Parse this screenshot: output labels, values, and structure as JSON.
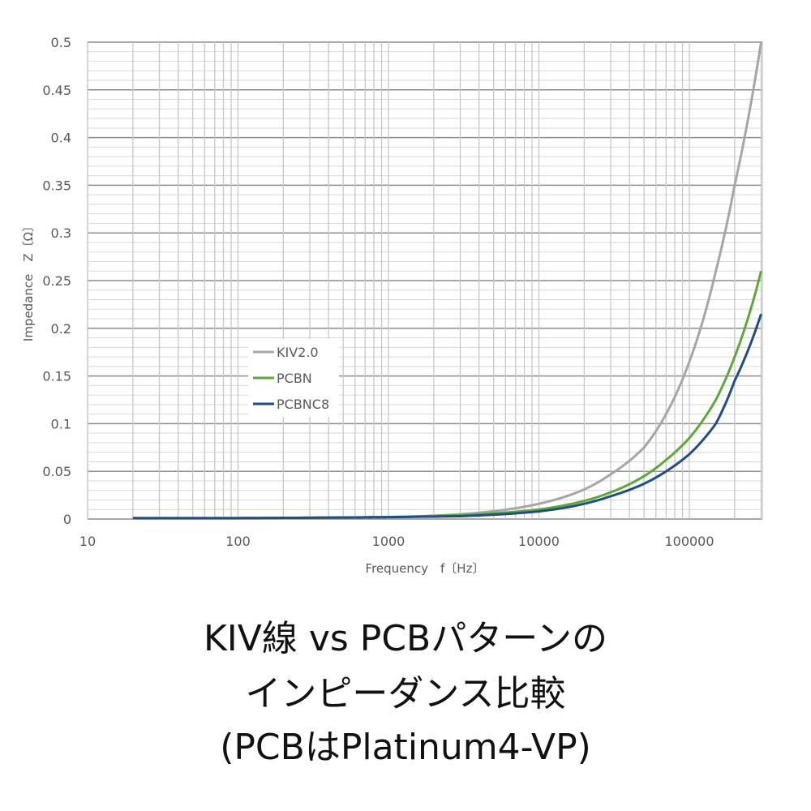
{
  "chart_data": {
    "type": "line",
    "xlabel": "Frequency　f〔Hz〕",
    "ylabel": "Impedance　Z〔Ω〕",
    "x_scale": "log",
    "xlim": [
      10,
      300000
    ],
    "ylim": [
      0,
      0.5
    ],
    "x_ticks": [
      "10",
      "100",
      "1000",
      "10000",
      "100000"
    ],
    "y_ticks": [
      "0",
      "0.05",
      "0.1",
      "0.15",
      "0.2",
      "0.25",
      "0.3",
      "0.35",
      "0.4",
      "0.45",
      "0.5"
    ],
    "grid": true,
    "legend_position": "center-left",
    "x": [
      20,
      100,
      1000,
      3000,
      10000,
      20000,
      30000,
      50000,
      70000,
      100000,
      150000,
      200000,
      300000
    ],
    "series": [
      {
        "name": "KIV2.0",
        "color": "#a6a6a6",
        "values": [
          0.001,
          0.001,
          0.002,
          0.005,
          0.016,
          0.031,
          0.047,
          0.075,
          0.11,
          0.165,
          0.26,
          0.35,
          0.5
        ]
      },
      {
        "name": "PCBN",
        "color": "#5ea83a",
        "values": [
          0.001,
          0.001,
          0.002,
          0.004,
          0.01,
          0.019,
          0.028,
          0.045,
          0.062,
          0.085,
          0.125,
          0.17,
          0.26
        ]
      },
      {
        "name": "PCBNC8",
        "color": "#1f4e85",
        "values": [
          0.001,
          0.001,
          0.002,
          0.003,
          0.008,
          0.016,
          0.024,
          0.037,
          0.05,
          0.068,
          0.1,
          0.145,
          0.215
        ]
      }
    ]
  },
  "caption": {
    "line1": "KIV線 vs PCBパターンの",
    "line2": "インピーダンス比較",
    "line3": "(PCBはPlatinum4-VP)"
  }
}
